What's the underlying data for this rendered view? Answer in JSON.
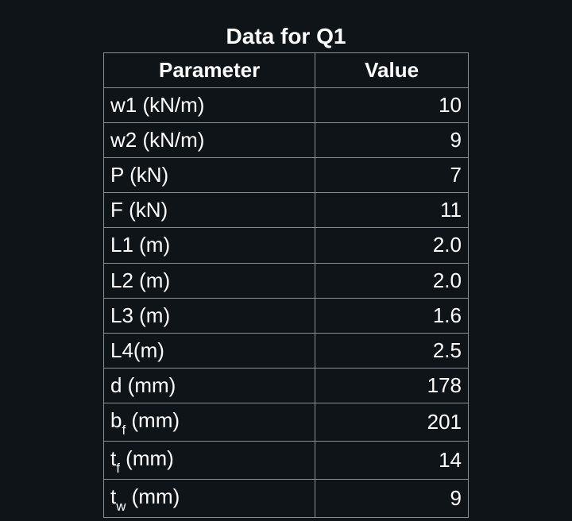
{
  "table": {
    "title": "Data for Q1",
    "columns": [
      "Parameter",
      "Value"
    ],
    "rows": [
      {
        "param_html": "w1 (kN/m)",
        "value": "10"
      },
      {
        "param_html": "w2 (kN/m)",
        "value": "9"
      },
      {
        "param_html": "P (kN)",
        "value": "7"
      },
      {
        "param_html": "F (kN)",
        "value": "11"
      },
      {
        "param_html": "L1 (m)",
        "value": "2.0"
      },
      {
        "param_html": "L2 (m)",
        "value": "2.0"
      },
      {
        "param_html": "L3 (m)",
        "value": "1.6"
      },
      {
        "param_html": "L4(m)",
        "value": "2.5"
      },
      {
        "param_html": "d (mm)",
        "value": "178"
      },
      {
        "param_html": "b<span class=\"sub\">f</span> (mm)",
        "value": "201"
      },
      {
        "param_html": "t<span class=\"sub\">f</span> (mm)",
        "value": "14"
      },
      {
        "param_html": "t<span class=\"sub\">w</span> (mm)",
        "value": "9"
      }
    ],
    "colors": {
      "background": "#0f1419",
      "text": "#ffffff",
      "border": "#8a8f95"
    },
    "font_sizes": {
      "title": 28,
      "cell": 26
    }
  }
}
